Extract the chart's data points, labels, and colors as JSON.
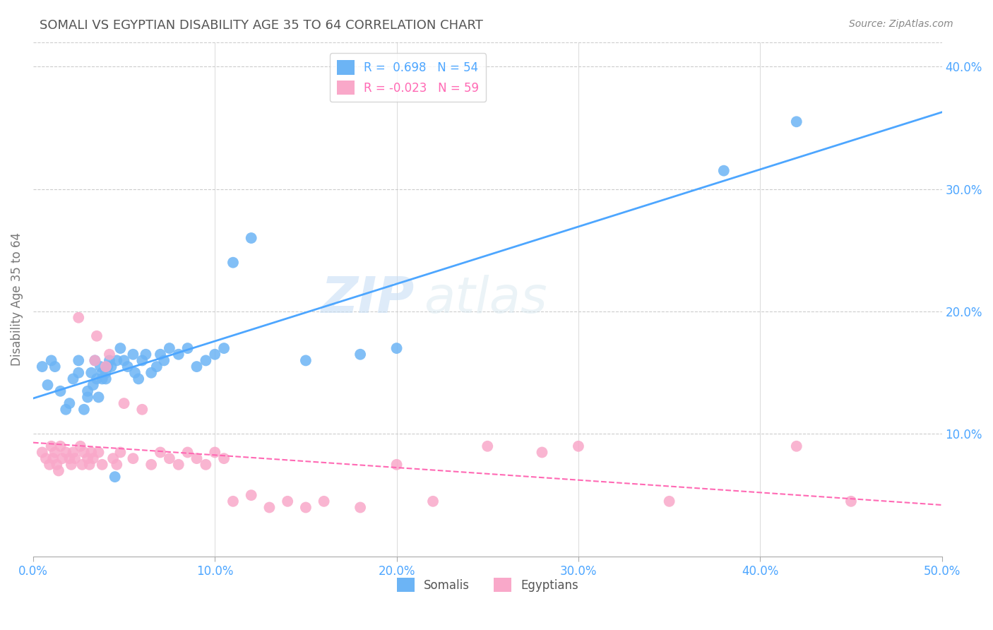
{
  "title": "SOMALI VS EGYPTIAN DISABILITY AGE 35 TO 64 CORRELATION CHART",
  "source": "Source: ZipAtlas.com",
  "ylabel": "Disability Age 35 to 64",
  "xlim": [
    0.0,
    0.5
  ],
  "ylim": [
    0.0,
    0.42
  ],
  "xticks": [
    0.0,
    0.1,
    0.2,
    0.3,
    0.4,
    0.5
  ],
  "yticks": [
    0.1,
    0.2,
    0.3,
    0.4
  ],
  "ytick_labels": [
    "10.0%",
    "20.0%",
    "30.0%",
    "40.0%"
  ],
  "xtick_labels": [
    "0.0%",
    "10.0%",
    "20.0%",
    "30.0%",
    "40.0%",
    "50.0%"
  ],
  "somali_color": "#6cb4f5",
  "egyptian_color": "#f9a8c9",
  "somali_line_color": "#4da6ff",
  "egyptian_line_color": "#ff69b4",
  "r_somali": 0.698,
  "n_somali": 54,
  "r_egyptian": -0.023,
  "n_egyptian": 59,
  "legend_somali_label": "Somalis",
  "legend_egyptian_label": "Egyptians",
  "watermark_zip": "ZIP",
  "watermark_atlas": "atlas",
  "background_color": "#ffffff",
  "grid_color": "#cccccc",
  "title_color": "#555555",
  "axis_label_color": "#4da6ff",
  "somali_x": [
    0.005,
    0.008,
    0.01,
    0.012,
    0.015,
    0.018,
    0.02,
    0.022,
    0.025,
    0.025,
    0.028,
    0.03,
    0.03,
    0.032,
    0.033,
    0.034,
    0.035,
    0.036,
    0.037,
    0.038,
    0.038,
    0.04,
    0.04,
    0.041,
    0.042,
    0.043,
    0.045,
    0.046,
    0.048,
    0.05,
    0.052,
    0.055,
    0.056,
    0.058,
    0.06,
    0.062,
    0.065,
    0.068,
    0.07,
    0.072,
    0.075,
    0.08,
    0.085,
    0.09,
    0.095,
    0.1,
    0.105,
    0.11,
    0.12,
    0.15,
    0.18,
    0.2,
    0.38,
    0.42
  ],
  "somali_y": [
    0.155,
    0.14,
    0.16,
    0.155,
    0.135,
    0.12,
    0.125,
    0.145,
    0.16,
    0.15,
    0.12,
    0.13,
    0.135,
    0.15,
    0.14,
    0.16,
    0.145,
    0.13,
    0.155,
    0.145,
    0.15,
    0.145,
    0.15,
    0.155,
    0.16,
    0.155,
    0.065,
    0.16,
    0.17,
    0.16,
    0.155,
    0.165,
    0.15,
    0.145,
    0.16,
    0.165,
    0.15,
    0.155,
    0.165,
    0.16,
    0.17,
    0.165,
    0.17,
    0.155,
    0.16,
    0.165,
    0.17,
    0.24,
    0.26,
    0.16,
    0.165,
    0.17,
    0.315,
    0.355
  ],
  "egyptian_x": [
    0.005,
    0.007,
    0.009,
    0.01,
    0.011,
    0.012,
    0.013,
    0.014,
    0.015,
    0.016,
    0.018,
    0.02,
    0.021,
    0.022,
    0.023,
    0.025,
    0.026,
    0.027,
    0.028,
    0.03,
    0.031,
    0.032,
    0.033,
    0.034,
    0.035,
    0.036,
    0.038,
    0.04,
    0.042,
    0.044,
    0.046,
    0.048,
    0.05,
    0.055,
    0.06,
    0.065,
    0.07,
    0.075,
    0.08,
    0.085,
    0.09,
    0.095,
    0.1,
    0.105,
    0.11,
    0.12,
    0.13,
    0.14,
    0.15,
    0.16,
    0.18,
    0.2,
    0.22,
    0.25,
    0.28,
    0.3,
    0.35,
    0.42,
    0.45
  ],
  "egyptian_y": [
    0.085,
    0.08,
    0.075,
    0.09,
    0.08,
    0.085,
    0.075,
    0.07,
    0.09,
    0.08,
    0.085,
    0.08,
    0.075,
    0.085,
    0.08,
    0.195,
    0.09,
    0.075,
    0.085,
    0.08,
    0.075,
    0.085,
    0.08,
    0.16,
    0.18,
    0.085,
    0.075,
    0.155,
    0.165,
    0.08,
    0.075,
    0.085,
    0.125,
    0.08,
    0.12,
    0.075,
    0.085,
    0.08,
    0.075,
    0.085,
    0.08,
    0.075,
    0.085,
    0.08,
    0.045,
    0.05,
    0.04,
    0.045,
    0.04,
    0.045,
    0.04,
    0.075,
    0.045,
    0.09,
    0.085,
    0.09,
    0.045,
    0.09,
    0.045
  ]
}
